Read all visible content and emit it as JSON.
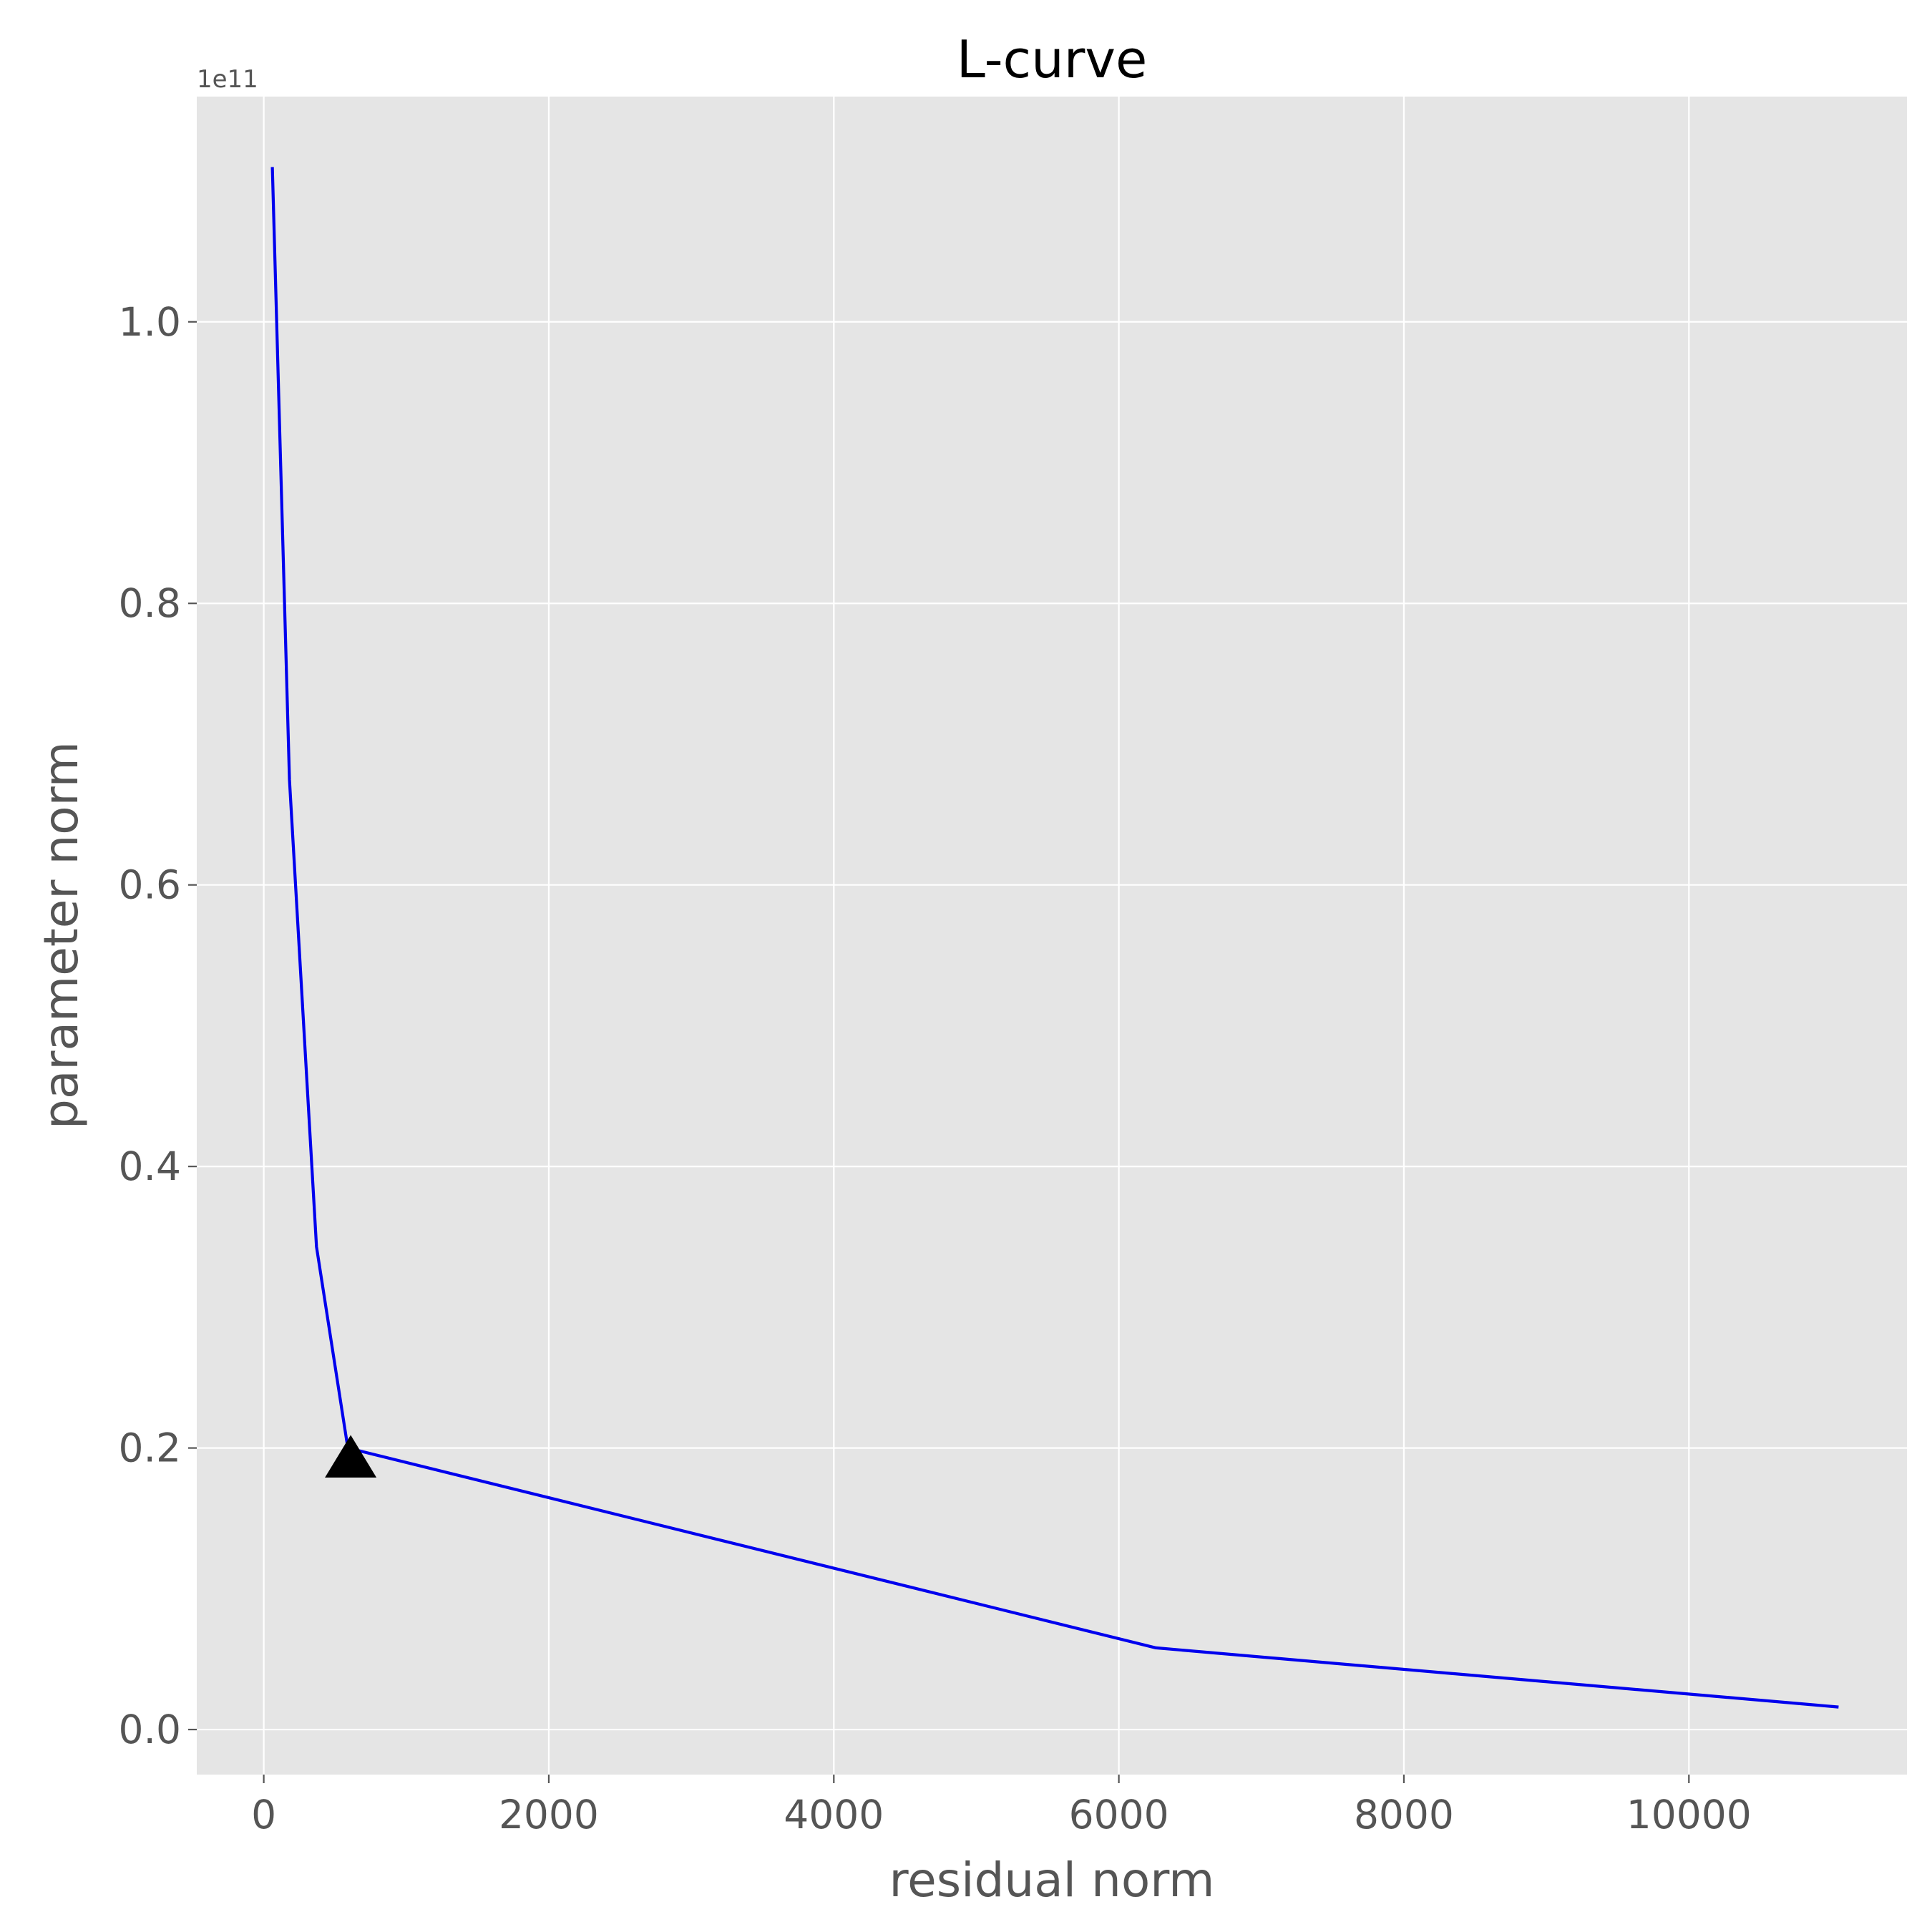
{
  "chart_data": {
    "type": "line",
    "title": "L-curve",
    "xlabel": "residual norm",
    "ylabel": "parameter norm",
    "y_offset_label": "1e11",
    "xlim": [
      -470,
      11530
    ],
    "ylim": [
      -0.032,
      1.16
    ],
    "xticks": [
      0,
      2000,
      4000,
      6000,
      8000,
      10000
    ],
    "xtick_labels": [
      "0",
      "2000",
      "4000",
      "6000",
      "8000",
      "10000"
    ],
    "yticks": [
      0.0,
      0.2,
      0.4,
      0.6,
      0.8,
      1.0
    ],
    "ytick_labels": [
      "0.0",
      "0.2",
      "0.4",
      "0.6",
      "0.8",
      "1.0"
    ],
    "grid": true,
    "background_color": "#e5e5e5",
    "grid_color": "#ffffff",
    "series": [
      {
        "color": "#0000ee",
        "x": [
          60,
          180,
          370,
          590,
          6260,
          11050
        ],
        "y": [
          1.11,
          0.675,
          0.343,
          0.2,
          0.058,
          0.016
        ]
      }
    ],
    "markers": [
      {
        "shape": "triangle-up",
        "color": "#000000",
        "x": 610,
        "y": 0.19
      }
    ]
  }
}
